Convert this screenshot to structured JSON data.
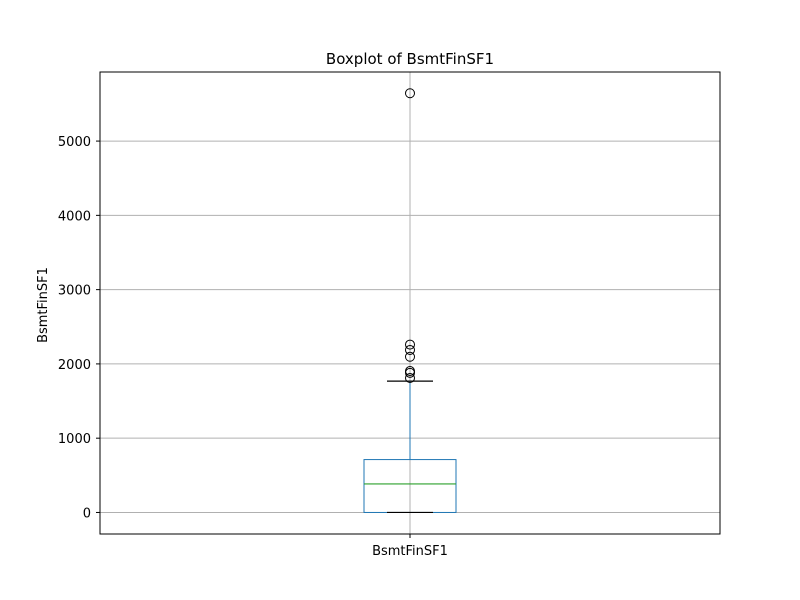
{
  "chart_data": {
    "type": "box",
    "title": "Boxplot of BsmtFinSF1",
    "xlabel": "",
    "ylabel": "BsmtFinSF1",
    "categories": [
      "BsmtFinSF1"
    ],
    "ylim": [
      -290,
      5930
    ],
    "yticks": [
      0,
      1000,
      2000,
      3000,
      4000,
      5000
    ],
    "grid": true,
    "box": {
      "whisker_low": 0,
      "q1": 0,
      "median": 384,
      "q3": 712,
      "whisker_high": 1768
    },
    "outliers": [
      1810,
      1880,
      1904,
      2096,
      2188,
      2260,
      5644
    ],
    "colors": {
      "box": "#1f77b4",
      "median": "#2ca02c",
      "caps": "#000000",
      "grid": "#b0b0b0",
      "outlier": "#000000"
    }
  }
}
